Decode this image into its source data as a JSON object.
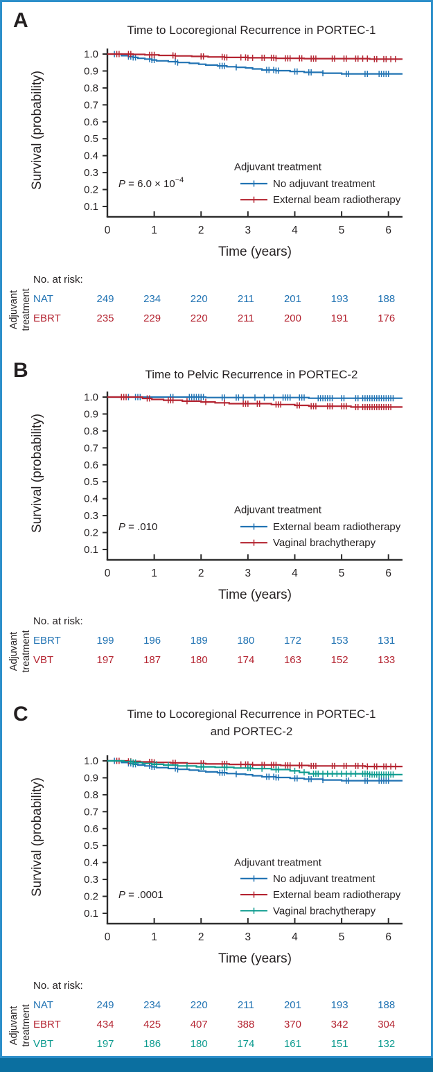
{
  "colors": {
    "blue": "#2173b3",
    "red": "#b42431",
    "teal": "#0d9b8f",
    "text": "#231f20",
    "axis": "#2b2b2b",
    "border": "#2d8fca",
    "footer_bar": "#0b6fa0"
  },
  "axis": {
    "ylabel": "Survival (probability)",
    "xlabel": "Time (years)",
    "yticks": [
      "1.0",
      "0.9",
      "0.8",
      "0.7",
      "0.6",
      "0.5",
      "0.4",
      "0.3",
      "0.2",
      "0.1"
    ],
    "xticks": [
      "0",
      "1",
      "2",
      "3",
      "4",
      "5",
      "6"
    ],
    "xlim": [
      0,
      6.3
    ],
    "ylim": [
      0,
      1.0
    ]
  },
  "risk_table": {
    "header": "No. at risk:",
    "side_label": "Adjuvant\ntreatment"
  },
  "chart_data": [
    {
      "type": "line",
      "letter": "A",
      "title_lines": [
        "Time to Locoregional Recurrence in PORTEC-1"
      ],
      "p_value": {
        "italic": "P",
        "rest": " = 6.0 × 10",
        "sup": "−4"
      },
      "legend": {
        "title": "Adjuvant treatment",
        "entries": [
          {
            "label": "No adjuvant treatment",
            "color_key": "blue"
          },
          {
            "label": "External beam radiotherapy",
            "color_key": "red"
          }
        ]
      },
      "series": [
        {
          "name": "No adjuvant treatment",
          "color_key": "blue",
          "steps": [
            [
              0,
              1
            ],
            [
              0.3,
              0.99
            ],
            [
              0.45,
              0.985
            ],
            [
              0.55,
              0.98
            ],
            [
              0.65,
              0.975
            ],
            [
              0.8,
              0.97
            ],
            [
              0.95,
              0.965
            ],
            [
              1.05,
              0.96
            ],
            [
              1.3,
              0.955
            ],
            [
              1.5,
              0.95
            ],
            [
              1.75,
              0.945
            ],
            [
              1.95,
              0.94
            ],
            [
              2.1,
              0.935
            ],
            [
              2.35,
              0.93
            ],
            [
              2.55,
              0.925
            ],
            [
              2.75,
              0.922
            ],
            [
              2.95,
              0.918
            ],
            [
              3.1,
              0.912
            ],
            [
              3.3,
              0.906
            ],
            [
              3.6,
              0.902
            ],
            [
              3.9,
              0.897
            ],
            [
              4.2,
              0.892
            ],
            [
              4.6,
              0.887
            ],
            [
              5.0,
              0.883
            ]
          ],
          "censors": [
            0.15,
            0.45,
            0.5,
            0.55,
            0.6,
            0.9,
            0.95,
            1.0,
            1.45,
            1.5,
            2.4,
            2.45,
            2.5,
            2.75,
            3.4,
            3.45,
            3.55,
            3.6,
            3.65,
            4.0,
            4.05,
            4.3,
            4.35,
            4.6,
            5.1,
            5.15,
            5.5,
            5.55,
            5.8,
            5.85,
            5.9,
            5.95,
            6.0
          ]
        },
        {
          "name": "External beam radiotherapy",
          "color_key": "red",
          "steps": [
            [
              0,
              1
            ],
            [
              0.55,
              0.998
            ],
            [
              0.8,
              0.995
            ],
            [
              1.1,
              0.992
            ],
            [
              1.45,
              0.989
            ],
            [
              1.8,
              0.986
            ],
            [
              2.15,
              0.983
            ],
            [
              2.5,
              0.98
            ],
            [
              3.0,
              0.978
            ],
            [
              3.6,
              0.975
            ],
            [
              4.2,
              0.973
            ],
            [
              5.6,
              0.97
            ]
          ],
          "censors": [
            0.2,
            0.25,
            0.45,
            0.5,
            0.9,
            0.95,
            1.0,
            1.4,
            1.45,
            2.0,
            2.05,
            2.45,
            2.5,
            2.55,
            2.85,
            2.95,
            3.0,
            3.1,
            3.3,
            3.35,
            3.5,
            3.55,
            3.6,
            3.8,
            3.85,
            3.9,
            4.1,
            4.15,
            4.35,
            4.4,
            4.45,
            4.8,
            4.85,
            5.05,
            5.1,
            5.3,
            5.35,
            5.45,
            5.55,
            5.7,
            5.75,
            5.9,
            5.95,
            6.05,
            6.15
          ]
        }
      ],
      "risk_rows": [
        {
          "label": "NAT",
          "color_key": "blue",
          "values": [
            249,
            234,
            220,
            211,
            201,
            193,
            188
          ]
        },
        {
          "label": "EBRT",
          "color_key": "red",
          "values": [
            235,
            229,
            220,
            211,
            200,
            191,
            176
          ]
        }
      ]
    },
    {
      "type": "line",
      "letter": "B",
      "title_lines": [
        "Time to Pelvic Recurrence in PORTEC-2"
      ],
      "p_value": {
        "italic": "P",
        "rest": " = .010"
      },
      "legend": {
        "title": "Adjuvant treatment",
        "entries": [
          {
            "label": "External beam radiotherapy",
            "color_key": "blue"
          },
          {
            "label": "Vaginal brachytherapy",
            "color_key": "red"
          }
        ]
      },
      "series": [
        {
          "name": "External beam radiotherapy",
          "color_key": "blue",
          "steps": [
            [
              0,
              1
            ],
            [
              2.1,
              0.997
            ],
            [
              4.3,
              0.993
            ]
          ],
          "censors": [
            0.45,
            0.6,
            0.65,
            0.7,
            1.35,
            1.4,
            1.75,
            1.8,
            1.85,
            1.9,
            1.95,
            2.0,
            2.05,
            2.45,
            2.5,
            2.75,
            2.8,
            2.9,
            3.15,
            3.35,
            3.55,
            3.75,
            3.8,
            3.85,
            3.9,
            4.1,
            4.15,
            4.2,
            4.5,
            4.55,
            4.6,
            4.65,
            4.7,
            4.75,
            4.8,
            5.0,
            5.05,
            5.3,
            5.35,
            5.45,
            5.5,
            5.55,
            5.6,
            5.65,
            5.7,
            5.75,
            5.8,
            5.85,
            5.9,
            5.95,
            6.0,
            6.05,
            6.1
          ],
          "censors_above": true
        },
        {
          "name": "Vaginal brachytherapy",
          "color_key": "red",
          "steps": [
            [
              0,
              1
            ],
            [
              0.75,
              0.992
            ],
            [
              0.95,
              0.986
            ],
            [
              1.2,
              0.981
            ],
            [
              1.6,
              0.976
            ],
            [
              2.0,
              0.971
            ],
            [
              2.3,
              0.966
            ],
            [
              2.6,
              0.961
            ],
            [
              3.5,
              0.956
            ],
            [
              4.0,
              0.951
            ],
            [
              4.3,
              0.946
            ],
            [
              5.2,
              0.941
            ]
          ],
          "censors": [
            0.3,
            0.35,
            0.4,
            0.85,
            0.9,
            1.3,
            1.35,
            1.4,
            1.7,
            2.1,
            2.5,
            2.9,
            2.95,
            3.0,
            3.2,
            3.25,
            3.6,
            3.65,
            3.7,
            4.05,
            4.1,
            4.35,
            4.4,
            4.45,
            4.7,
            4.75,
            4.8,
            5.0,
            5.05,
            5.1,
            5.3,
            5.35,
            5.45,
            5.5,
            5.55,
            5.6,
            5.65,
            5.7,
            5.75,
            5.8,
            5.85,
            5.9,
            5.95,
            6.0,
            6.05
          ]
        }
      ],
      "risk_rows": [
        {
          "label": "EBRT",
          "color_key": "blue",
          "values": [
            199,
            196,
            189,
            180,
            172,
            153,
            131
          ]
        },
        {
          "label": "VBT",
          "color_key": "red",
          "values": [
            197,
            187,
            180,
            174,
            163,
            152,
            133
          ]
        }
      ]
    },
    {
      "type": "line",
      "letter": "C",
      "title_lines": [
        "Time to Locoregional Recurrence in PORTEC-1",
        "and PORTEC-2"
      ],
      "p_value": {
        "italic": "P",
        "rest": " = .0001"
      },
      "legend": {
        "title": "Adjuvant treatment",
        "entries": [
          {
            "label": "No adjuvant treatment",
            "color_key": "blue"
          },
          {
            "label": "External beam radiotherapy",
            "color_key": "red"
          },
          {
            "label": "Vaginal brachytherapy",
            "color_key": "teal"
          }
        ]
      },
      "series": [
        {
          "name": "No adjuvant treatment",
          "color_key": "blue",
          "steps": [
            [
              0,
              1
            ],
            [
              0.3,
              0.99
            ],
            [
              0.45,
              0.985
            ],
            [
              0.55,
              0.98
            ],
            [
              0.65,
              0.975
            ],
            [
              0.8,
              0.97
            ],
            [
              0.95,
              0.965
            ],
            [
              1.05,
              0.96
            ],
            [
              1.3,
              0.955
            ],
            [
              1.5,
              0.95
            ],
            [
              1.75,
              0.945
            ],
            [
              1.95,
              0.94
            ],
            [
              2.1,
              0.935
            ],
            [
              2.35,
              0.93
            ],
            [
              2.55,
              0.925
            ],
            [
              2.75,
              0.922
            ],
            [
              2.95,
              0.918
            ],
            [
              3.1,
              0.912
            ],
            [
              3.3,
              0.906
            ],
            [
              3.6,
              0.902
            ],
            [
              3.9,
              0.897
            ],
            [
              4.2,
              0.892
            ],
            [
              4.6,
              0.887
            ],
            [
              5.0,
              0.883
            ]
          ],
          "censors": [
            0.15,
            0.45,
            0.5,
            0.55,
            0.6,
            0.9,
            0.95,
            1.0,
            1.45,
            1.5,
            2.4,
            2.45,
            2.5,
            2.75,
            3.4,
            3.45,
            3.55,
            3.6,
            3.65,
            4.0,
            4.05,
            4.3,
            4.35,
            4.6,
            5.1,
            5.15,
            5.5,
            5.55,
            5.8,
            5.85,
            5.9,
            5.95,
            6.0
          ]
        },
        {
          "name": "External beam radiotherapy",
          "color_key": "red",
          "steps": [
            [
              0,
              1
            ],
            [
              0.45,
              0.997
            ],
            [
              0.7,
              0.994
            ],
            [
              1.0,
              0.991
            ],
            [
              1.35,
              0.988
            ],
            [
              1.7,
              0.985
            ],
            [
              2.1,
              0.982
            ],
            [
              2.6,
              0.979
            ],
            [
              3.1,
              0.976
            ],
            [
              3.7,
              0.973
            ],
            [
              4.3,
              0.97
            ],
            [
              5.5,
              0.967
            ]
          ],
          "censors": [
            0.2,
            0.25,
            0.45,
            0.5,
            0.9,
            0.95,
            1.0,
            1.4,
            1.45,
            2.0,
            2.05,
            2.45,
            2.5,
            2.55,
            2.85,
            2.95,
            3.0,
            3.1,
            3.3,
            3.35,
            3.5,
            3.55,
            3.6,
            3.8,
            3.85,
            3.9,
            4.1,
            4.15,
            4.35,
            4.4,
            4.45,
            4.8,
            4.85,
            5.05,
            5.1,
            5.3,
            5.35,
            5.45,
            5.55,
            5.7,
            5.75,
            5.9,
            5.95,
            6.05,
            6.15
          ]
        },
        {
          "name": "Vaginal brachytherapy",
          "color_key": "teal",
          "steps": [
            [
              0,
              1
            ],
            [
              0.35,
              0.995
            ],
            [
              0.55,
              0.99
            ],
            [
              0.75,
              0.985
            ],
            [
              0.95,
              0.98
            ],
            [
              1.2,
              0.975
            ],
            [
              1.5,
              0.97
            ],
            [
              1.9,
              0.965
            ],
            [
              2.3,
              0.962
            ],
            [
              2.7,
              0.958
            ],
            [
              3.1,
              0.954
            ],
            [
              3.5,
              0.949
            ],
            [
              3.9,
              0.941
            ],
            [
              4.1,
              0.932
            ],
            [
              4.3,
              0.924
            ],
            [
              5.6,
              0.919
            ]
          ],
          "censors": [
            0.5,
            0.55,
            0.6,
            1.0,
            1.05,
            1.3,
            1.7,
            2.0,
            2.05,
            2.5,
            2.55,
            3.0,
            3.05,
            3.3,
            3.6,
            3.65,
            4.0,
            4.2,
            4.4,
            4.45,
            4.5,
            4.6,
            4.7,
            4.8,
            4.9,
            5.0,
            5.1,
            5.2,
            5.3,
            5.45,
            5.5,
            5.55,
            5.6,
            5.65,
            5.7,
            5.75,
            5.8,
            5.85,
            5.9,
            5.95,
            6.0,
            6.05,
            6.1
          ]
        }
      ],
      "risk_rows": [
        {
          "label": "NAT",
          "color_key": "blue",
          "values": [
            249,
            234,
            220,
            211,
            201,
            193,
            188
          ]
        },
        {
          "label": "EBRT",
          "color_key": "red",
          "values": [
            434,
            425,
            407,
            388,
            370,
            342,
            304
          ]
        },
        {
          "label": "VBT",
          "color_key": "teal",
          "values": [
            197,
            186,
            180,
            174,
            161,
            151,
            132
          ]
        }
      ]
    }
  ]
}
